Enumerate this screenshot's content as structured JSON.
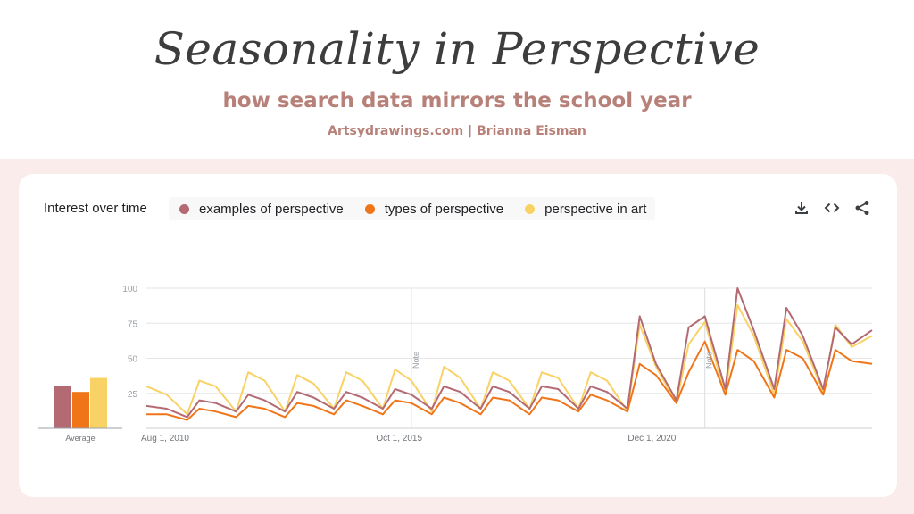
{
  "header": {
    "title": "Seasonality in Perspective",
    "subtitle": "how search data mirrors the school year",
    "byline": "Artsydrawings.com | Brianna Eisman"
  },
  "card": {
    "title": "Interest over time",
    "tools": [
      "download-icon",
      "embed-code-icon",
      "share-icon"
    ],
    "average_label": "Average",
    "note_label": "Note"
  },
  "colors": {
    "examples": "#b46a72",
    "types": "#f07519",
    "art": "#f9d266",
    "title_text": "#3d3d3d",
    "accent_text": "#b78078",
    "band": "#f9ecea"
  },
  "chart_data": {
    "type": "line",
    "x_range": [
      "Aug 1, 2010",
      "Jun 2025"
    ],
    "x_ticks": [
      "Aug 1, 2010",
      "Oct 1, 2015",
      "Dec 1, 2020"
    ],
    "ylim": [
      0,
      100
    ],
    "y_ticks": [
      "25",
      "50",
      "75",
      "100"
    ],
    "grid": true,
    "legend_position": "top-left",
    "notes": [
      "2016-01",
      "2022-01"
    ],
    "x": [
      "2010-08",
      "2011-01",
      "2011-06",
      "2011-09",
      "2012-01",
      "2012-06",
      "2012-09",
      "2013-01",
      "2013-06",
      "2013-09",
      "2014-01",
      "2014-06",
      "2014-09",
      "2015-01",
      "2015-06",
      "2015-09",
      "2016-01",
      "2016-06",
      "2016-09",
      "2017-01",
      "2017-06",
      "2017-09",
      "2018-01",
      "2018-06",
      "2018-09",
      "2019-01",
      "2019-06",
      "2019-09",
      "2020-01",
      "2020-06",
      "2020-09",
      "2021-01",
      "2021-06",
      "2021-09",
      "2022-01",
      "2022-06",
      "2022-09",
      "2023-01",
      "2023-06",
      "2023-09",
      "2024-01",
      "2024-06",
      "2024-09",
      "2025-01",
      "2025-06"
    ],
    "series": [
      {
        "name": "examples of perspective",
        "values": [
          16,
          14,
          8,
          20,
          18,
          12,
          24,
          20,
          12,
          26,
          22,
          14,
          26,
          22,
          14,
          28,
          24,
          14,
          30,
          26,
          14,
          30,
          26,
          14,
          30,
          28,
          14,
          30,
          26,
          14,
          80,
          46,
          20,
          72,
          80,
          28,
          100,
          70,
          28,
          86,
          66,
          28,
          72,
          60,
          70
        ]
      },
      {
        "name": "types of perspective",
        "values": [
          10,
          10,
          6,
          14,
          12,
          8,
          16,
          14,
          8,
          18,
          16,
          10,
          20,
          16,
          10,
          20,
          18,
          10,
          22,
          18,
          10,
          22,
          20,
          10,
          22,
          20,
          12,
          24,
          20,
          12,
          46,
          38,
          18,
          40,
          62,
          24,
          56,
          48,
          22,
          56,
          50,
          24,
          56,
          48,
          46
        ]
      },
      {
        "name": "perspective in art",
        "values": [
          30,
          24,
          10,
          34,
          30,
          12,
          40,
          34,
          12,
          38,
          32,
          14,
          40,
          34,
          14,
          42,
          34,
          12,
          44,
          36,
          14,
          40,
          34,
          14,
          40,
          36,
          14,
          40,
          34,
          12,
          74,
          44,
          18,
          60,
          76,
          24,
          88,
          66,
          24,
          78,
          62,
          26,
          74,
          58,
          66
        ]
      }
    ],
    "averages": [
      30,
      26,
      36
    ]
  }
}
